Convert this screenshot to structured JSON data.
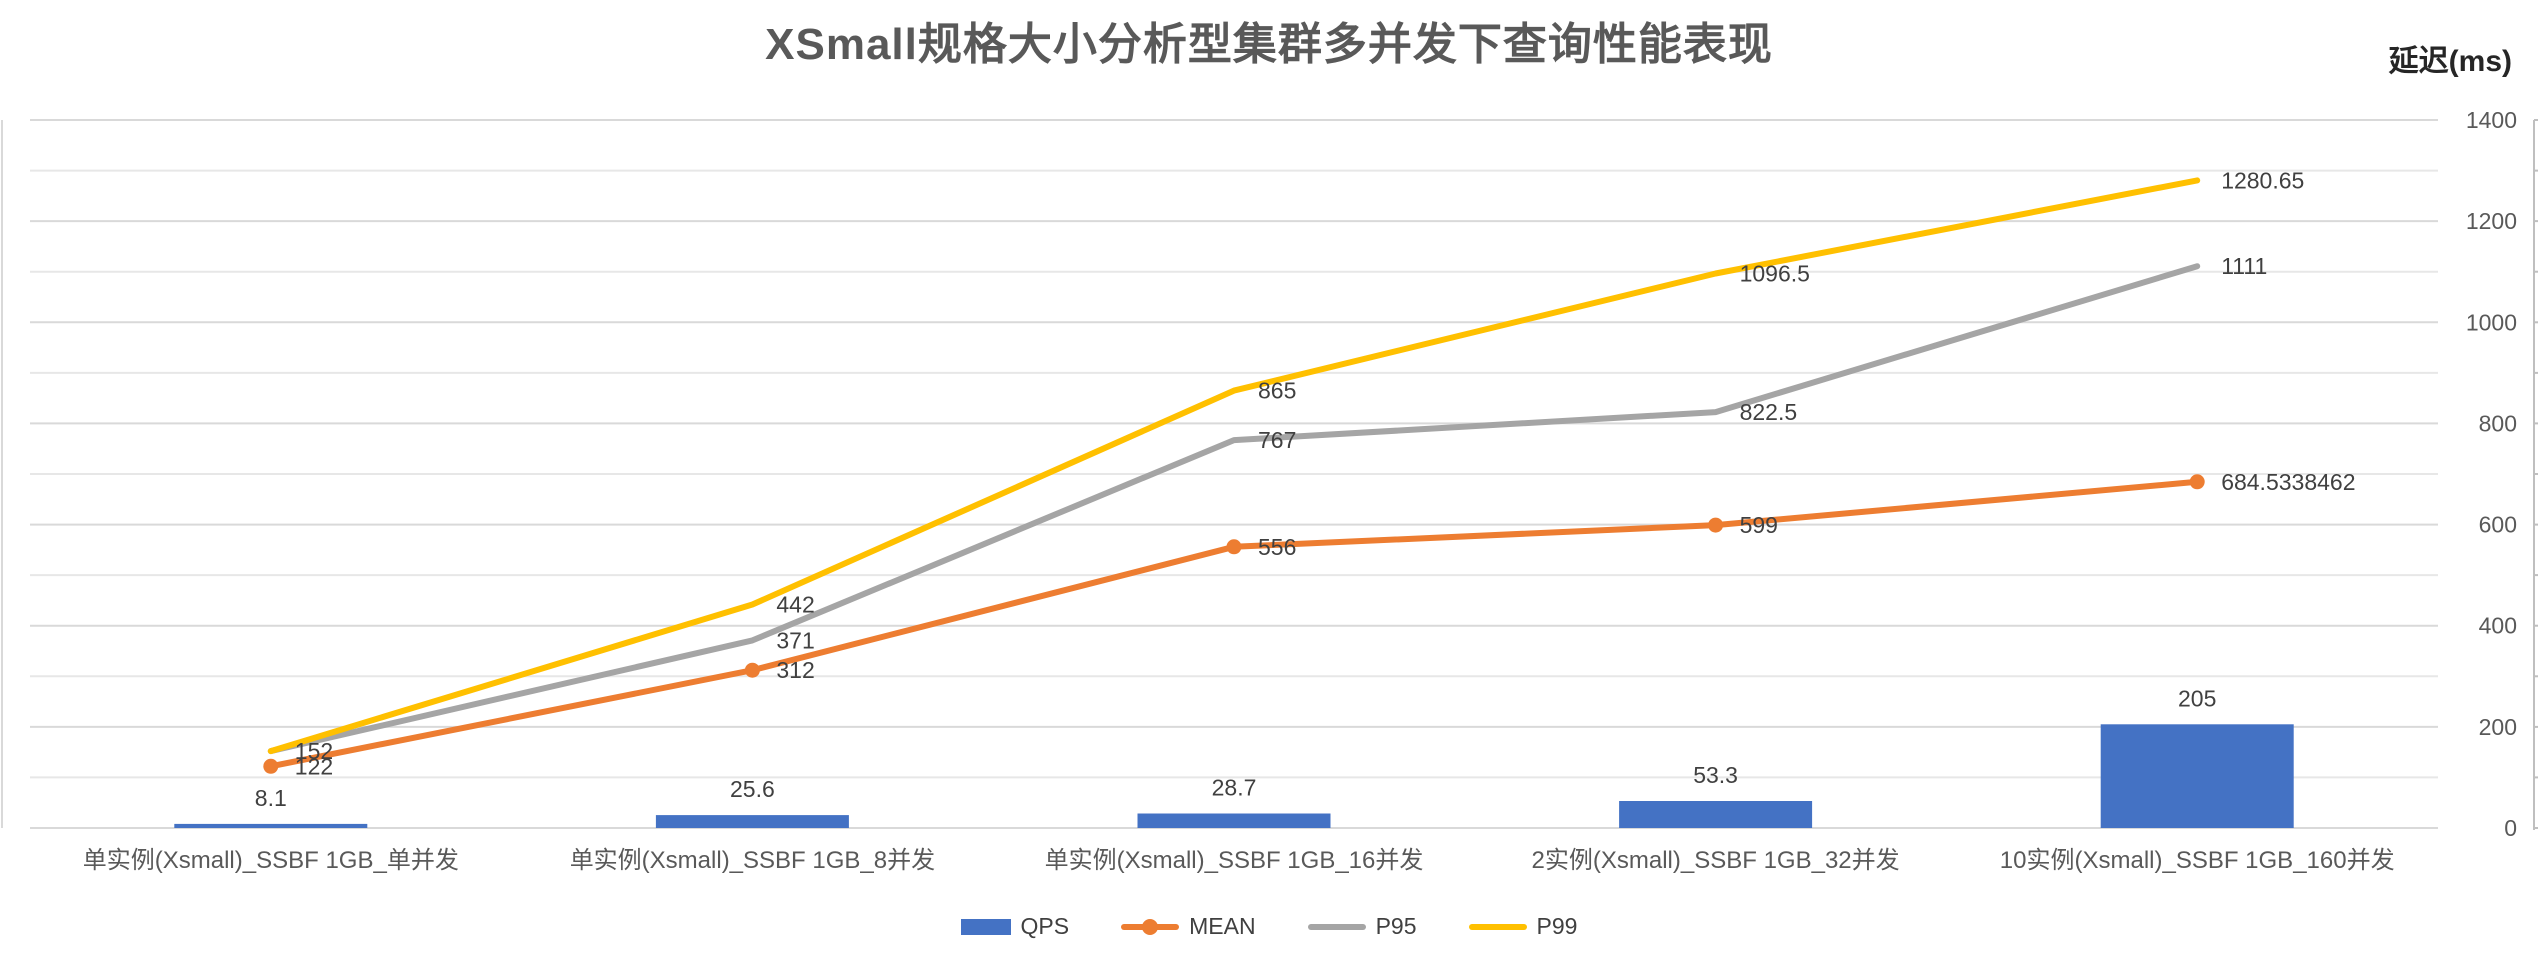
{
  "title": "XSmall规格大小分析型集群多并发下查询性能表现",
  "axis_unit_label": "延迟(ms)",
  "legend": [
    {
      "label": "QPS",
      "marker": "bar",
      "color": "#4472C4"
    },
    {
      "label": "MEAN",
      "marker": "line-dot",
      "color": "#ED7D31"
    },
    {
      "label": "P95",
      "marker": "line",
      "color": "#A5A5A5"
    },
    {
      "label": "P99",
      "marker": "line",
      "color": "#FFC000"
    }
  ],
  "chart_data": {
    "type": "bar+line combo",
    "title": "XSmall规格大小分析型集群多并发下查询性能表现",
    "categories": [
      "单实例(Xsmall)_SSBF 1GB_单并发",
      "单实例(Xsmall)_SSBF 1GB_8并发",
      "单实例(Xsmall)_SSBF 1GB_16并发",
      "2实例(Xsmall)_SSBF 1GB_32并发",
      "10实例(Xsmall)_SSBF 1GB_160并发"
    ],
    "series": [
      {
        "name": "QPS",
        "type": "bar",
        "color": "#4472C4",
        "values": [
          8.1,
          25.6,
          28.7,
          53.3,
          205
        ],
        "labels": [
          "8.1",
          "25.6",
          "28.7",
          "53.3",
          "205"
        ]
      },
      {
        "name": "MEAN",
        "type": "line",
        "marker": "circle",
        "color": "#ED7D31",
        "values": [
          122,
          312,
          556,
          599,
          684.5338462
        ],
        "labels": [
          "122",
          "312",
          "556",
          "599",
          "684.5338462"
        ]
      },
      {
        "name": "P95",
        "type": "line",
        "marker": "none",
        "color": "#A5A5A5",
        "values": [
          152,
          371,
          767,
          822.5,
          1111
        ],
        "labels": [
          "152",
          "371",
          "767",
          "822.5",
          "1111"
        ]
      },
      {
        "name": "P99",
        "type": "line",
        "marker": "none",
        "color": "#FFC000",
        "values": [
          152,
          442,
          865,
          1096.5,
          1280.65
        ],
        "labels": [
          "",
          "442",
          "865",
          "1096.5",
          "1280.65"
        ]
      }
    ],
    "y_axis": {
      "side": "right",
      "label": "延迟(ms)",
      "min": 0,
      "max": 1400,
      "major_tick_interval": 200,
      "minor_gridline_interval": 100,
      "tick_labels": [
        "0",
        "200",
        "400",
        "600",
        "800",
        "1000",
        "1200",
        "1400"
      ],
      "grid": true
    },
    "legend_position": "bottom"
  }
}
